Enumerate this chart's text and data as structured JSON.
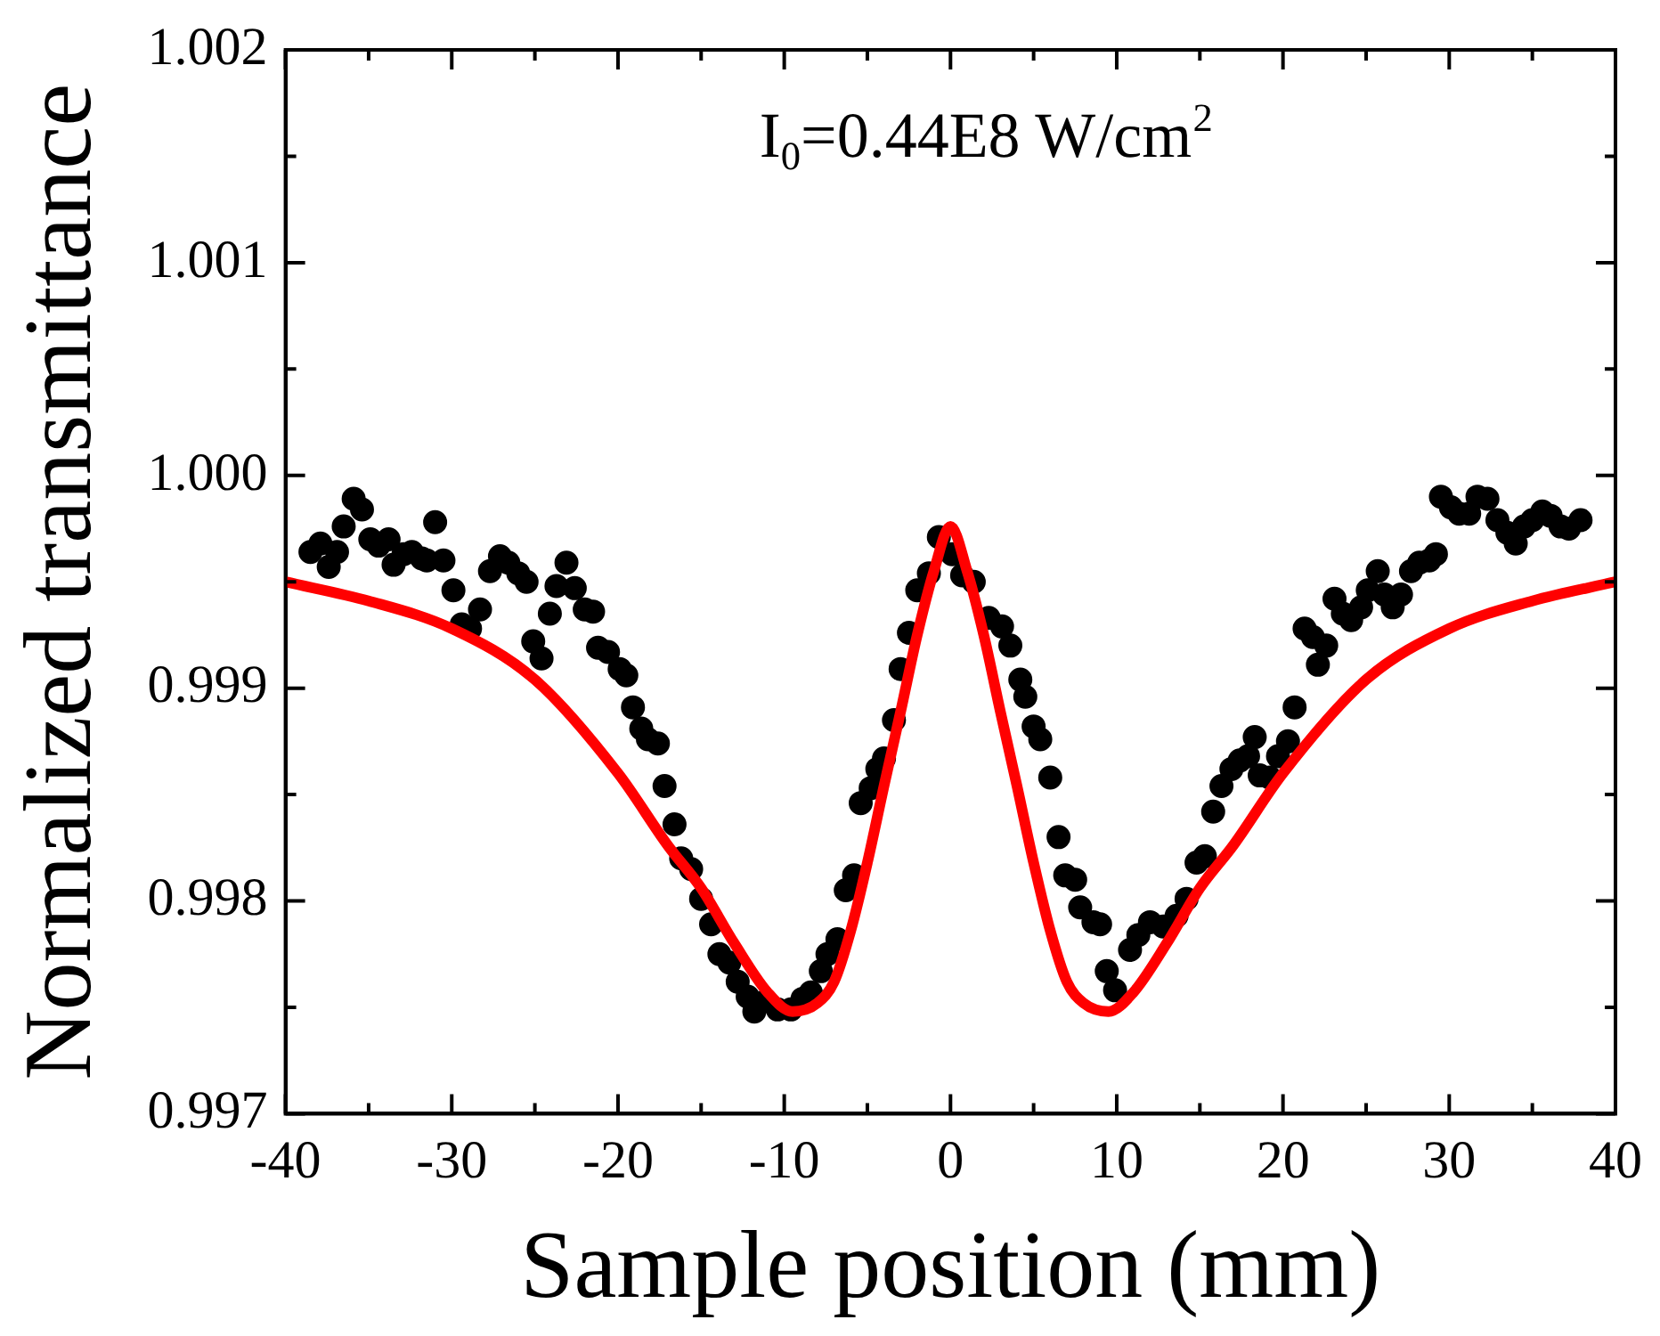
{
  "chart_data": {
    "type": "scatter",
    "xlabel": "Sample position (mm)",
    "ylabel": "Normalized transmittance",
    "annotations": [
      "I$_{0}$=0.44E8 W/cm$^{2}$"
    ],
    "xlim": [
      -40,
      40
    ],
    "ylim": [
      0.997,
      1.002
    ],
    "xticks": [
      -40,
      {
        "value": -35,
        "label": null
      },
      -30,
      {
        "value": -25,
        "label": null
      },
      -20,
      {
        "value": -15,
        "label": null
      },
      -10,
      {
        "value": -5,
        "label": null
      },
      0,
      {
        "value": 5,
        "label": null
      },
      10,
      {
        "value": 15,
        "label": null
      },
      20,
      {
        "value": 25,
        "label": null
      },
      30,
      {
        "value": 35,
        "label": null
      },
      40
    ],
    "yticks": [
      0.997,
      {
        "value": 0.9975,
        "label": null
      },
      0.998,
      {
        "value": 0.9985,
        "label": null
      },
      0.999,
      {
        "value": 0.9995,
        "label": null
      },
      {
        "value": 1.0,
        "label": "1.000"
      },
      {
        "value": 1.0005,
        "label": null
      },
      1.001,
      {
        "value": 1.0015,
        "label": null
      },
      1.002
    ],
    "grid": false,
    "legend": false,
    "series": [
      {
        "type": "scatter",
        "marker": "circle",
        "color": "#000000",
        "x": [
          -38.5,
          -37.9,
          -37.4,
          -36.9,
          -36.5,
          -35.9,
          -35.4,
          -34.9,
          -34.4,
          -33.8,
          -33.5,
          -32.9,
          -32.4,
          -31.8,
          -31.5,
          -31.0,
          -30.5,
          -29.9,
          -29.4,
          -28.9,
          -28.3,
          -27.7,
          -27.1,
          -26.6,
          -26.0,
          -25.5,
          -25.1,
          -24.6,
          -24.1,
          -23.7,
          -23.1,
          -22.6,
          -22.0,
          -21.5,
          -21.2,
          -20.6,
          -19.9,
          -19.5,
          -19.1,
          -18.6,
          -18.2,
          -17.6,
          -17.2,
          -16.6,
          -16.2,
          -15.6,
          -15.0,
          -14.4,
          -13.9,
          -13.3,
          -12.8,
          -12.2,
          -11.8,
          -11.1,
          -10.4,
          -9.6,
          -8.9,
          -8.4,
          -7.8,
          -7.4,
          -6.8,
          -6.3,
          -5.8,
          -5.4,
          -4.8,
          -4.4,
          -4.0,
          -3.4,
          -3.0,
          -2.5,
          -2.0,
          -1.3,
          -0.7,
          0.1,
          0.7,
          1.4,
          2.3,
          3.1,
          3.6,
          4.2,
          4.5,
          5.0,
          5.4,
          6.0,
          6.5,
          6.9,
          7.5,
          7.8,
          8.6,
          9.0,
          9.4,
          9.9,
          10.8,
          11.3,
          12.0,
          12.8,
          13.6,
          14.2,
          14.8,
          15.3,
          15.8,
          16.3,
          16.9,
          17.4,
          17.9,
          18.3,
          18.6,
          19.2,
          19.7,
          20.3,
          20.7,
          21.3,
          21.8,
          22.1,
          22.6,
          23.1,
          23.6,
          24.1,
          24.7,
          25.1,
          25.7,
          26.1,
          26.6,
          27.1,
          27.7,
          28.2,
          28.8,
          29.2,
          29.5,
          30.1,
          30.6,
          31.2,
          31.7,
          32.3,
          32.9,
          33.5,
          34.0,
          34.5,
          35.0,
          35.6,
          36.1,
          36.7,
          37.2,
          37.9
        ],
        "values": [
          0.99964,
          0.99968,
          0.99957,
          0.99964,
          0.99976,
          0.99989,
          0.99984,
          0.9997,
          0.99967,
          0.9997,
          0.99958,
          0.99963,
          0.99964,
          0.99961,
          0.9996,
          0.99978,
          0.9996,
          0.99946,
          0.9993,
          0.99928,
          0.99937,
          0.99955,
          0.99962,
          0.99959,
          0.99954,
          0.9995,
          0.99922,
          0.99914,
          0.99935,
          0.99948,
          0.99959,
          0.99947,
          0.99937,
          0.99936,
          0.99919,
          0.99917,
          0.99909,
          0.99906,
          0.99891,
          0.99881,
          0.99876,
          0.99874,
          0.99854,
          0.99836,
          0.9982,
          0.99815,
          0.99801,
          0.99789,
          0.99775,
          0.99771,
          0.99762,
          0.99755,
          0.99748,
          0.99753,
          0.99749,
          0.99749,
          0.99754,
          0.99757,
          0.99767,
          0.99775,
          0.99782,
          0.99805,
          0.99812,
          0.99846,
          0.99853,
          0.99862,
          0.99867,
          0.99885,
          0.99909,
          0.99926,
          0.99946,
          0.99954,
          0.99971,
          0.99963,
          0.99953,
          0.9995,
          0.99933,
          0.99929,
          0.9992,
          0.99904,
          0.99896,
          0.99882,
          0.99876,
          0.99858,
          0.9983,
          0.99812,
          0.9981,
          0.99797,
          0.9979,
          0.99789,
          0.99767,
          0.99758,
          0.99777,
          0.99784,
          0.9979,
          0.99788,
          0.99793,
          0.99801,
          0.99818,
          0.99821,
          0.99842,
          0.99854,
          0.99862,
          0.99866,
          0.99868,
          0.99877,
          0.99859,
          0.99858,
          0.99868,
          0.99875,
          0.99891,
          0.99928,
          0.99924,
          0.99911,
          0.9992,
          0.99942,
          0.99935,
          0.99932,
          0.99938,
          0.99946,
          0.99955,
          0.99944,
          0.99938,
          0.99944,
          0.99955,
          0.99959,
          0.9996,
          0.99963,
          0.9999,
          0.99985,
          0.99982,
          0.99982,
          0.9999,
          0.99989,
          0.99979,
          0.99973,
          0.99968,
          0.99976,
          0.99979,
          0.99983,
          0.99981,
          0.99976,
          0.99975,
          0.99979
        ]
      },
      {
        "type": "line",
        "marker": "none",
        "color": "#ff0000",
        "x": [
          -40,
          -35,
          -30,
          -25,
          -20,
          -17,
          -15,
          -13,
          -11,
          -9.5,
          -8,
          -7,
          -6,
          -5,
          -4,
          -3,
          -2,
          -1,
          0,
          1,
          2,
          3,
          4,
          5,
          6,
          7,
          8,
          9.5,
          11,
          13,
          15,
          17,
          20,
          25,
          30,
          35,
          40
        ],
        "values": [
          0.9995,
          0.99941,
          0.99928,
          0.99904,
          0.9986,
          0.99826,
          0.99806,
          0.9978,
          0.99757,
          0.99748,
          0.99752,
          0.99762,
          0.99786,
          0.99818,
          0.99854,
          0.99889,
          0.99925,
          0.99955,
          0.99976,
          0.99955,
          0.99925,
          0.99889,
          0.99854,
          0.99818,
          0.99786,
          0.99762,
          0.99752,
          0.99748,
          0.99757,
          0.9978,
          0.99806,
          0.99826,
          0.9986,
          0.99904,
          0.99928,
          0.99941,
          0.9995
        ]
      }
    ]
  }
}
